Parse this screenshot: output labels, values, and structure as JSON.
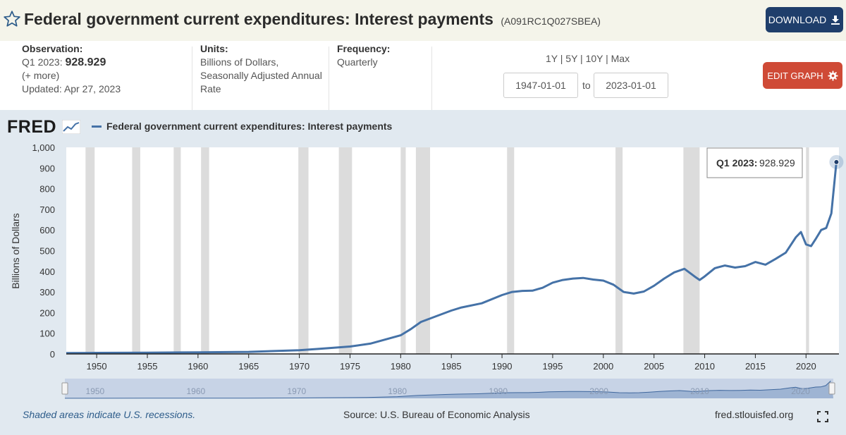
{
  "header": {
    "title": "Federal government current expenditures: Interest payments",
    "series_id": "(A091RC1Q027SBEA)",
    "download_label": "DOWNLOAD"
  },
  "meta": {
    "observation_label": "Observation:",
    "observation_period": "Q1 2023:",
    "observation_value": "928.929",
    "more": "(+ more)",
    "updated": "Updated: Apr 27, 2023",
    "units_label": "Units:",
    "units_line1": "Billions of Dollars,",
    "units_line2": "Seasonally Adjusted Annual",
    "units_line3": "Rate",
    "frequency_label": "Frequency:",
    "frequency_value": "Quarterly"
  },
  "controls": {
    "range_links": "1Y | 5Y | 10Y | Max",
    "start_date": "1947-01-01",
    "to_label": "to",
    "end_date": "2023-01-01",
    "edit_label": "EDIT GRAPH"
  },
  "logo": "FRED",
  "footer": {
    "recession_note": "Shaded areas indicate U.S. recessions.",
    "source": "Source: U.S. Bureau of Economic Analysis",
    "site": "fred.stlouisfed.org"
  },
  "tooltip": {
    "label": "Q1 2023:",
    "value": "928.929"
  },
  "colors": {
    "line": "#4572a7",
    "recession": "#dcdcdc",
    "download": "#1f3e6b",
    "edit": "#cf4a36",
    "panel": "#e1e9f0"
  },
  "chart_data": {
    "type": "line",
    "title": "",
    "legend": "Federal government current expenditures: Interest payments",
    "xlabel": "",
    "ylabel": "Billions of Dollars",
    "xlim": [
      1947,
      2023.25
    ],
    "ylim": [
      0,
      1000
    ],
    "grid": false,
    "x_ticks": [
      1950,
      1955,
      1960,
      1965,
      1970,
      1975,
      1980,
      1985,
      1990,
      1995,
      2000,
      2005,
      2010,
      2015,
      2020
    ],
    "y_ticks": [
      0,
      100,
      200,
      300,
      400,
      500,
      600,
      700,
      800,
      900,
      1000
    ],
    "y_tick_labels": [
      "0",
      "100",
      "200",
      "300",
      "400",
      "500",
      "600",
      "700",
      "800",
      "900",
      "1,000"
    ],
    "recessions": [
      [
        1948.9,
        1949.8
      ],
      [
        1953.5,
        1954.3
      ],
      [
        1957.6,
        1958.3
      ],
      [
        1960.3,
        1961.1
      ],
      [
        1969.9,
        1970.9
      ],
      [
        1973.9,
        1975.2
      ],
      [
        1980.0,
        1980.5
      ],
      [
        1981.5,
        1982.9
      ],
      [
        1990.5,
        1991.2
      ],
      [
        2001.2,
        2001.9
      ],
      [
        2007.9,
        2009.5
      ],
      [
        2020.0,
        2020.3
      ]
    ],
    "series": [
      {
        "name": "Federal government current expenditures: Interest payments",
        "x": [
          1947,
          1950,
          1955,
          1960,
          1965,
          1970,
          1972,
          1975,
          1977,
          1980,
          1981,
          1982,
          1985,
          1986,
          1988,
          1990,
          1991,
          1992,
          1993,
          1994,
          1995,
          1996,
          1997,
          1998,
          1999,
          2000,
          2001,
          2002,
          2003,
          2004,
          2005,
          2006,
          2007,
          2008,
          2009,
          2009.5,
          2010,
          2011,
          2012,
          2013,
          2014,
          2015,
          2016,
          2017,
          2018,
          2019,
          2019.5,
          2020,
          2020.5,
          2021,
          2021.5,
          2022,
          2022.5,
          2023
        ],
        "values": [
          4,
          5,
          6,
          8,
          10,
          18,
          25,
          36,
          50,
          90,
          120,
          155,
          210,
          225,
          245,
          285,
          300,
          305,
          306,
          320,
          345,
          358,
          365,
          368,
          360,
          355,
          335,
          300,
          292,
          302,
          330,
          365,
          395,
          412,
          375,
          358,
          375,
          415,
          428,
          418,
          425,
          445,
          432,
          460,
          490,
          565,
          590,
          530,
          522,
          560,
          600,
          610,
          680,
          928.929
        ]
      }
    ],
    "navigator_ticks": [
      1950,
      1960,
      1970,
      1980,
      1990,
      2000,
      2010,
      2020
    ]
  }
}
